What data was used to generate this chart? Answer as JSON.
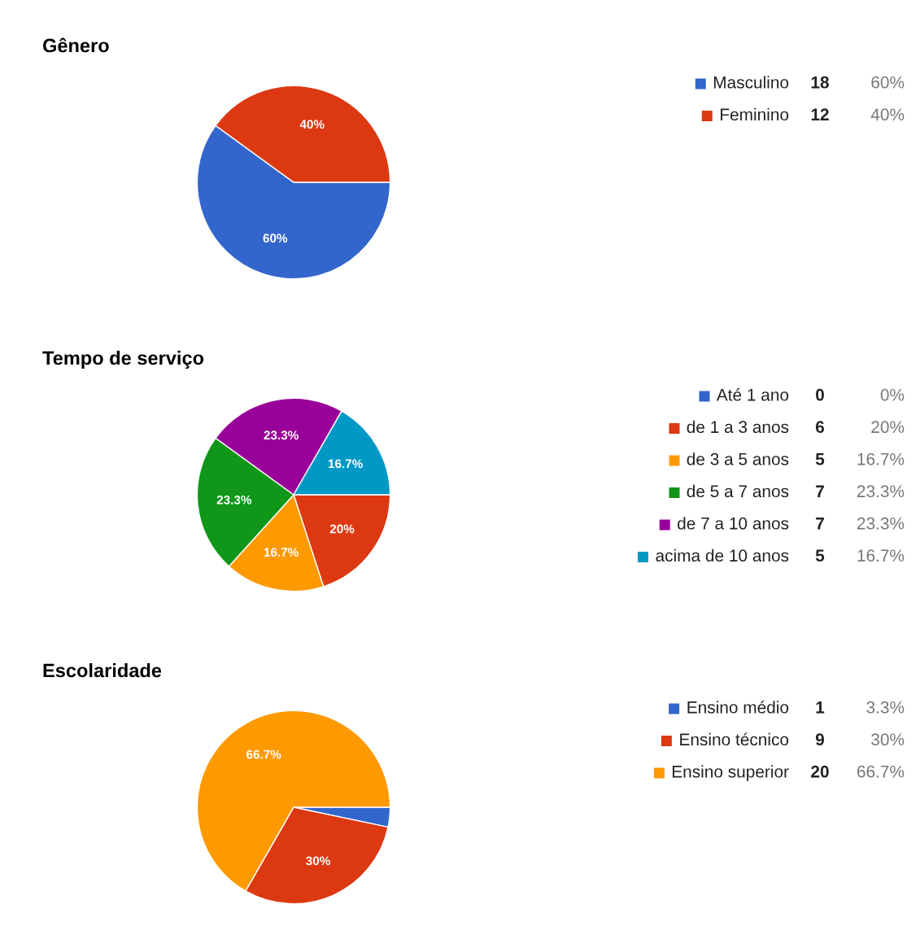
{
  "chart_data": [
    {
      "type": "pie",
      "title": "Gênero",
      "categories": [
        "Masculino",
        "Feminino"
      ],
      "values": [
        60,
        40
      ],
      "colors": [
        "#3366cc",
        "#dc3912"
      ],
      "legend": "right",
      "value_labels": [
        "60%",
        "40%"
      ],
      "annotations": [
        "18",
        "60%",
        "12",
        "40%"
      ]
    },
    {
      "type": "pie",
      "title": "Tempo de serviço",
      "categories": [
        "Até 1 ano",
        "de 1 a 3 anos",
        "de 3 a 5 anos",
        "de 5 a 7 anos",
        "de 7 a 10 anos",
        "acima de 10 anos"
      ],
      "values": [
        0,
        20,
        16.7,
        23.3,
        23.3,
        16.7
      ],
      "colors": [
        "#3366cc",
        "#dc3912",
        "#ff9900",
        "#109618",
        "#990099",
        "#0099c6"
      ],
      "legend": "right",
      "value_labels": [
        null,
        "20%",
        "16.7%",
        "23.3%",
        "23.3%",
        "16.7%"
      ],
      "annotations": [
        "0",
        "0%",
        "6",
        "20%",
        "5",
        "16.7%",
        "7",
        "23.3%",
        "7",
        "23.3%",
        "5",
        "16.7%"
      ]
    },
    {
      "type": "pie",
      "title": "Escolaridade",
      "categories": [
        "Ensino médio",
        "Ensino técnico",
        "Ensino superior"
      ],
      "values": [
        3.3,
        30,
        66.7
      ],
      "colors": [
        "#3366cc",
        "#dc3912",
        "#ff9900"
      ],
      "legend": "right",
      "value_labels": [
        null,
        "30%",
        "66.7%"
      ],
      "annotations": [
        "1",
        "3.3%",
        "9",
        "30%",
        "20",
        "66.7%"
      ]
    }
  ]
}
